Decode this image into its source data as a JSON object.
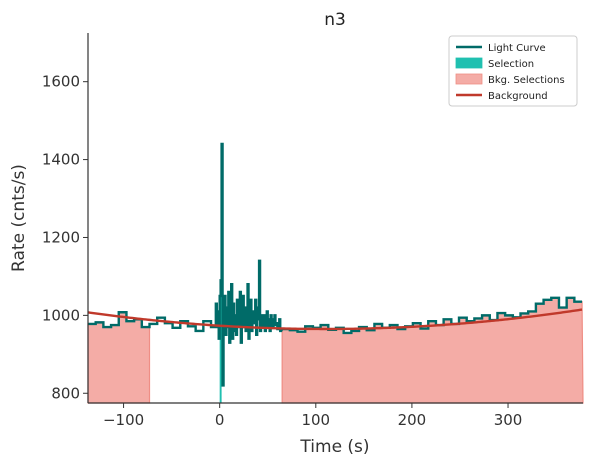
{
  "chart_data": {
    "type": "line",
    "title": "n3",
    "xlabel": "Time (s)",
    "ylabel": "Rate (cnts/s)",
    "xlim": [
      -137,
      378
    ],
    "ylim": [
      775,
      1725
    ],
    "xticks": [
      -100,
      0,
      100,
      200,
      300
    ],
    "xtick_labels": [
      "−100",
      "0",
      "100",
      "200",
      "300"
    ],
    "yticks": [
      800,
      1000,
      1200,
      1400,
      1600
    ],
    "ytick_labels": [
      "800",
      "1000",
      "1200",
      "1400",
      "1600"
    ],
    "grid": false,
    "legend": {
      "placement": "top-right",
      "entries": [
        {
          "label": "Light Curve",
          "kind": "line",
          "color": "#006b68"
        },
        {
          "label": "Selection",
          "kind": "patch",
          "color": "#20c0b0"
        },
        {
          "label": "Bkg. Selections",
          "kind": "patch",
          "color": "#f4aca6"
        },
        {
          "label": "Background",
          "kind": "line",
          "color": "#c0392b"
        }
      ]
    },
    "colors": {
      "light_curve": "#006b68",
      "selection": "#20c0b0",
      "bkg_fill": "#f4aca6",
      "bkg_edge": "#ef8e85",
      "background": "#c0392b",
      "axis": "#333333"
    },
    "bkg_selections": [
      [
        -137,
        -73
      ],
      [
        65,
        378
      ]
    ],
    "selection": [
      0,
      2
    ],
    "background_poly": {
      "center": 110,
      "min": 965,
      "curvature": 0.0007
    },
    "light_curve": {
      "coarse_bin": 8,
      "coarse_start": -137,
      "coarse_values": [
        978,
        982,
        970,
        975,
        1008,
        985,
        990,
        970,
        978,
        994,
        980,
        968,
        985,
        972,
        960,
        985,
        970,
        966,
        965,
        970,
        978,
        972,
        988,
        978
      ],
      "fine_start": -4,
      "fine_bin": 1,
      "fine_values": [
        1030,
        970,
        1010,
        940,
        1050,
        1090,
        1440,
        820,
        980,
        1050,
        950,
        1020,
        970,
        1060,
        930,
        1000,
        1080,
        940,
        1030,
        960,
        1000,
        950,
        1040,
        970,
        1010,
        1060,
        930,
        990,
        1050,
        970,
        1020,
        960,
        1000,
        1080,
        940,
        990,
        1040,
        960,
        1010,
        980,
        1000,
        1040,
        950,
        990,
        1020,
        1140,
        960,
        1000,
        980,
        970,
        1000,
        960,
        990,
        1010,
        970,
        990,
        960,
        1000,
        980,
        970,
        990,
        1000,
        975,
        980,
        965,
        970,
        990,
        960
      ],
      "tail_start": 65,
      "tail_bin": 8,
      "tail_values": [
        965,
        962,
        958,
        972,
        968,
        975,
        963,
        968,
        955,
        960,
        970,
        962,
        978,
        968,
        975,
        965,
        972,
        980,
        966,
        985,
        975,
        990,
        978,
        994,
        985,
        992,
        1000,
        988,
        1006,
        1000,
        995,
        1005,
        1010,
        1030,
        1040,
        1045,
        1020,
        1045,
        1035
      ]
    }
  }
}
